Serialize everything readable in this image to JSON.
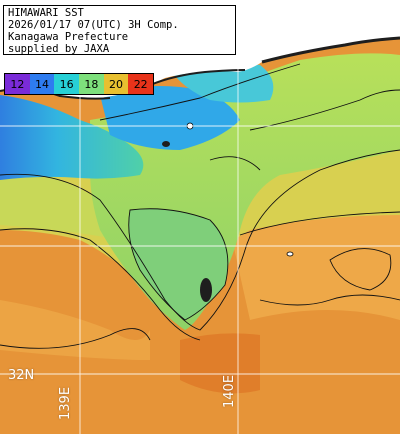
{
  "title_lines": [
    "HIMAWARI SST",
    "2026/01/17 07(UTC) 3H Comp.",
    "Kanagawa Prefecture",
    "supplied by JAXA"
  ],
  "legend": {
    "items": [
      {
        "value": "12",
        "color": "#7a2bd8"
      },
      {
        "value": "14",
        "color": "#2e7cf0"
      },
      {
        "value": "16",
        "color": "#27d0d6"
      },
      {
        "value": "18",
        "color": "#7ee07c"
      },
      {
        "value": "20",
        "color": "#e8c030"
      },
      {
        "value": "22",
        "color": "#e8331a"
      }
    ]
  },
  "grid_labels": {
    "lat_32n": "32N",
    "lon_139e": "139E",
    "lon_140e": "140E"
  },
  "colors": {
    "land": "#ffffff",
    "coast_dark": "#1e1e1e",
    "sea_warm": "#e08a30",
    "sea_mid": "#f0b050",
    "sea_green": "#8ed268",
    "sea_cool": "#40c0d0",
    "sea_cold": "#1e7ad8"
  }
}
